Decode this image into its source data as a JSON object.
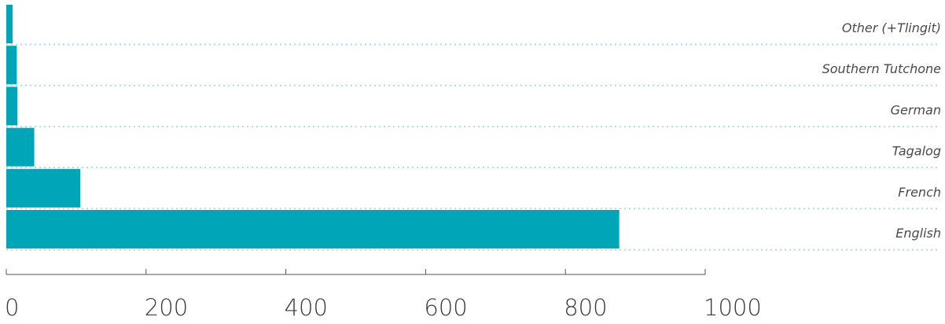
{
  "chart_data": {
    "type": "bar",
    "orientation": "horizontal",
    "categories": [
      "Other (+Tlingit)",
      "Southern Tutchone",
      "German",
      "Tagalog",
      "French",
      "English"
    ],
    "values": [
      9,
      15,
      16,
      40,
      106,
      877
    ],
    "xlim": [
      0,
      1000
    ],
    "xticks": [
      0,
      200,
      400,
      600,
      800,
      1000
    ],
    "bar_color": "#00a5b8",
    "gridline_color": "#a8dde4",
    "title": "",
    "xlabel": "",
    "ylabel": ""
  }
}
